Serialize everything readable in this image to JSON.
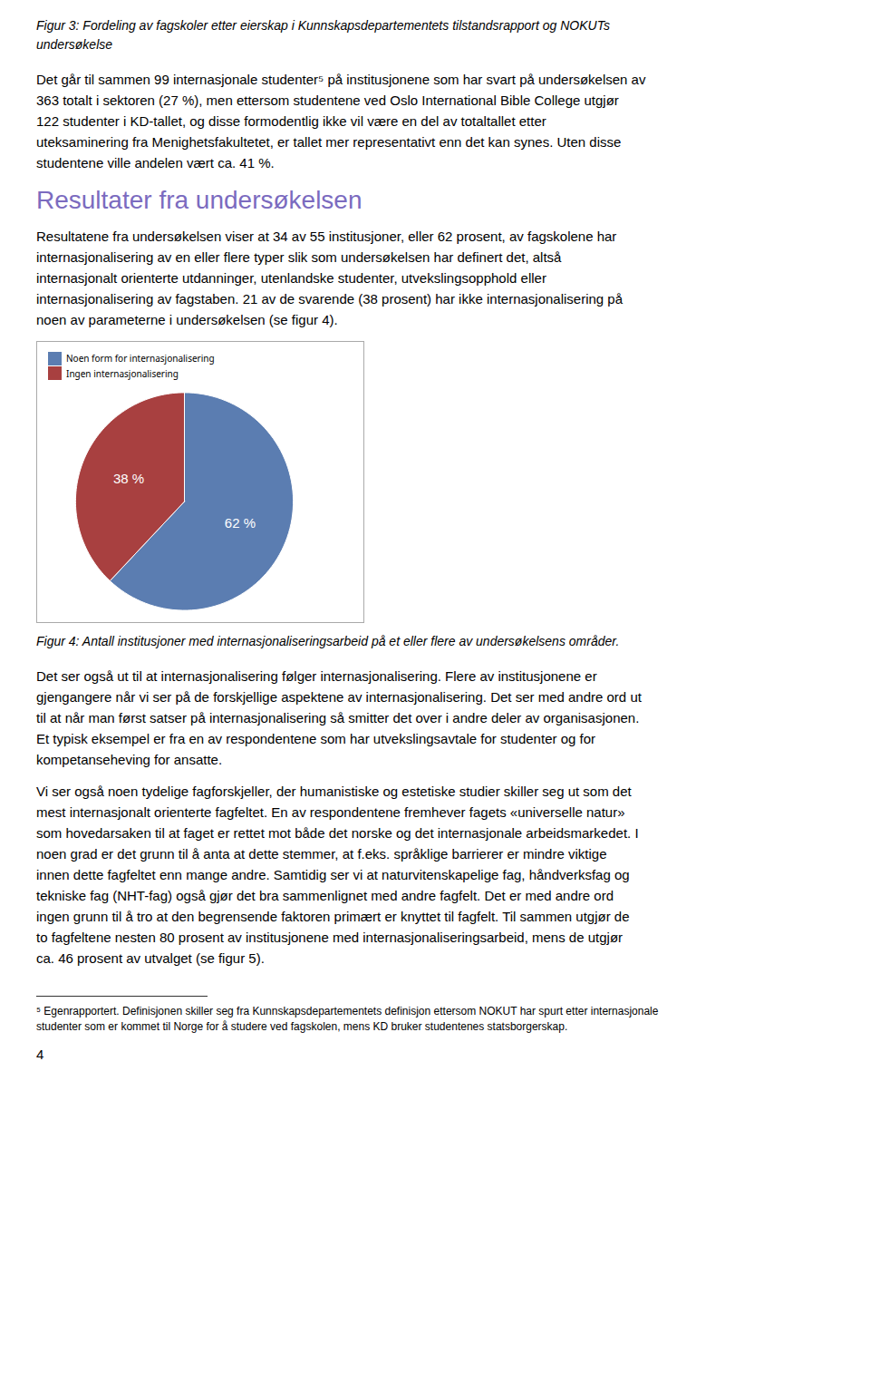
{
  "chart_data": {
    "type": "pie",
    "title": "Figur 4: Antall institusjoner med internasjonaliseringsarbeid på et eller flere av undersøkelsens områder.",
    "categories": [
      "Noen form for internasjonalisering",
      "Ingen internasjonalisering"
    ],
    "values": [
      62,
      38
    ],
    "value_labels": [
      "62 %",
      "38 %"
    ],
    "colors": [
      "#5B7DB1",
      "#A84040"
    ],
    "legend": "top-left",
    "data_labels": true,
    "annotations": [
      [
        "Figur 3: Fordeling av fagskoler etter eierskap i Kunnskapsdepartementets tilstandsrapport og NOKUTs",
        "undersøkelse"
      ],
      [
        "Det går til sammen 99 internasjonale studenter⁵ på institusjonene som har svart på undersøkelsen av",
        "363 totalt i sektoren (27 %), men ettersom studentene ved Oslo International Bible College utgjør",
        "122 studenter i KD-tallet, og disse formodentlig ikke vil være en del av totaltallet etter",
        "uteksaminering fra Menighetsfakultetet, er tallet mer representativt enn det kan synes. Uten disse",
        "studentene ville andelen vært ca. 41 %."
      ],
      [
        "Resultater fra undersøkelsen"
      ],
      [
        "Resultatene fra undersøkelsen viser at 34 av 55 institusjoner, eller 62 prosent, av fagskolene har",
        "internasjonalisering av en eller flere typer slik som undersøkelsen har definert det, altså",
        "internasjonalt orienterte utdanninger, utenlandske studenter, utvekslingsopphold eller",
        "internasjonalisering av fagstaben. 21 av de svarende (38 prosent) har ikke internasjonalisering på",
        "noen av parameterne i undersøkelsen (se figur 4)."
      ],
      [
        "Det ser også ut til at internasjonalisering følger internasjonalisering. Flere av institusjonene er",
        "gjengangere når vi ser på de forskjellige aspektene av internasjonalisering. Det ser med andre ord ut",
        "til at når man først satser på internasjonalisering så smitter det over i andre deler av organisasjonen.",
        "Et typisk eksempel er fra en av respondentene som har utvekslingsavtale for studenter og for",
        "kompetanseheving for ansatte."
      ],
      [
        "Vi ser også noen tydelige fagforskjeller, der humanistiske og estetiske studier skiller seg ut som det",
        "mest internasjonalt orienterte fagfeltet. En av respondentene fremhever fagets «universelle natur»",
        "som hovedarsaken til at faget er rettet mot både det norske og det internasjonale arbeidsmarkedet. I",
        "noen grad er det grunn til å anta at dette stemmer, at f.eks. språklige barrierer er mindre viktige",
        "innen dette fagfeltet enn mange andre. Samtidig ser vi at naturvitenskapelige fag, håndverksfag og",
        "tekniske fag (NHT-fag) også gjør det bra sammenlignet med andre fagfelt. Det er med andre ord",
        "ingen grunn til å tro at den begrensende faktoren primært er knyttet til fagfelt. Til sammen utgjør de",
        "to fagfeltene nesten 80 prosent av institusjonene med internasjonaliseringsarbeid, mens de utgjør",
        "ca. 46 prosent av utvalget (se figur 5)."
      ],
      [
        "⁵ Egenrapportert. Definisjonen skiller seg fra Kunnskapsdepartementets definisjon ettersom NOKUT har spurt etter internasjonale",
        "studenter som er kommet til Norge for å studere ved fagskolen, mens KD bruker studentenes statsborgerskap."
      ],
      [
        "4"
      ]
    ]
  }
}
